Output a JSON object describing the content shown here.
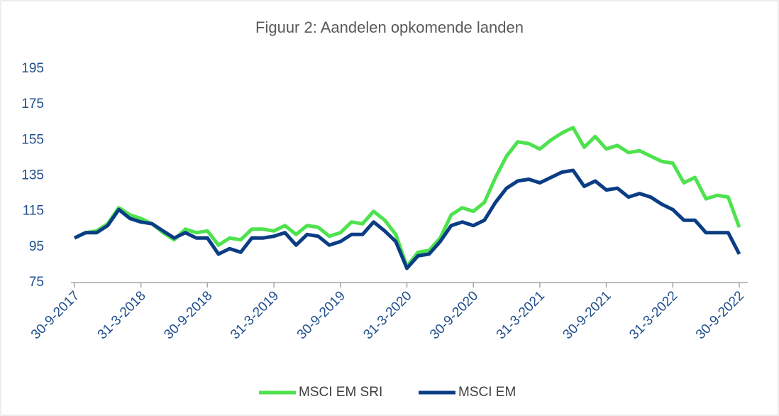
{
  "chart_data": {
    "type": "line",
    "title": "Figuur 2: Aandelen opkomende landen",
    "categories": [
      "30-9-2017",
      null,
      null,
      null,
      null,
      null,
      "31-3-2018",
      null,
      null,
      null,
      null,
      null,
      "30-9-2018",
      null,
      null,
      null,
      null,
      null,
      "31-3-2019",
      null,
      null,
      null,
      null,
      null,
      "30-9-2019",
      null,
      null,
      null,
      null,
      null,
      "31-3-2020",
      null,
      null,
      null,
      null,
      null,
      "30-9-2020",
      null,
      null,
      null,
      null,
      null,
      "31-3-2021",
      null,
      null,
      null,
      null,
      null,
      "30-9-2021",
      null,
      null,
      null,
      null,
      null,
      "31-3-2022",
      null,
      null,
      null,
      null,
      null,
      "30-9-2022"
    ],
    "series": [
      {
        "name": "MSCI EM SRI",
        "color": "#4ee24e",
        "values": [
          100,
          103,
          104,
          108,
          117,
          113,
          111,
          108,
          103,
          99,
          105,
          103,
          104,
          96,
          100,
          99,
          105,
          105,
          104,
          107,
          102,
          107,
          106,
          101,
          103,
          109,
          108,
          115,
          110,
          102,
          84,
          92,
          93,
          100,
          113,
          117,
          115,
          120,
          134,
          146,
          154,
          153,
          150,
          155,
          159,
          162,
          151,
          157,
          150,
          152,
          148,
          149,
          146,
          143,
          142,
          131,
          134,
          122,
          124,
          123,
          106
        ]
      },
      {
        "name": "MSCI EM",
        "color": "#0b3d84",
        "values": [
          100,
          103,
          103,
          107,
          116,
          111,
          109,
          108,
          104,
          100,
          103,
          100,
          100,
          91,
          94,
          92,
          100,
          100,
          101,
          103,
          96,
          102,
          101,
          96,
          98,
          102,
          102,
          109,
          104,
          98,
          83,
          90,
          91,
          98,
          107,
          109,
          107,
          110,
          120,
          128,
          132,
          133,
          131,
          134,
          137,
          138,
          129,
          132,
          127,
          128,
          123,
          125,
          123,
          119,
          116,
          110,
          110,
          103,
          103,
          103,
          91
        ]
      }
    ],
    "ylim": [
      75,
      195
    ],
    "yticks": [
      75,
      95,
      115,
      135,
      155,
      175,
      195
    ],
    "legend": "bottom"
  }
}
